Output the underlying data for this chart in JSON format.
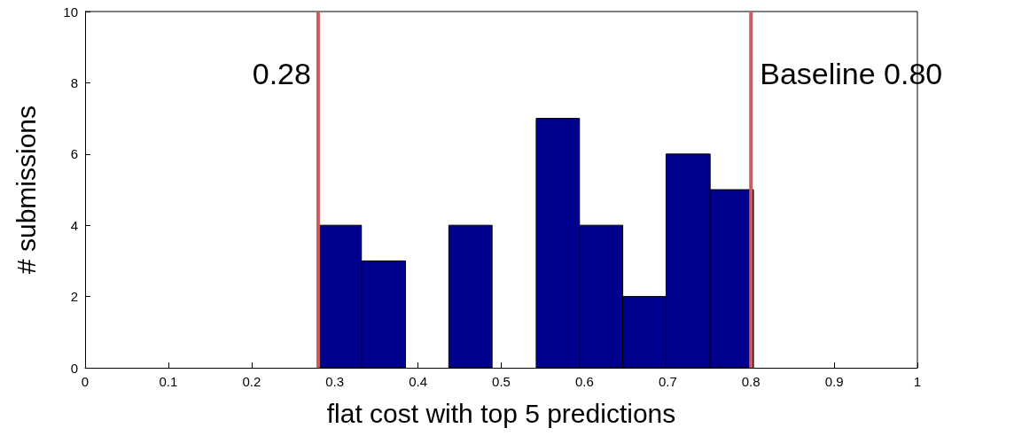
{
  "chart_data": {
    "type": "histogram",
    "xlabel": "flat cost with top 5 predictions",
    "ylabel": "# submissions",
    "bins": [
      0.28,
      0.332,
      0.385,
      0.437,
      0.489,
      0.542,
      0.594,
      0.646,
      0.698,
      0.751,
      0.803
    ],
    "values": [
      4,
      3,
      0,
      4,
      0,
      7,
      4,
      2,
      6,
      5
    ],
    "color": "#00008f",
    "xlim": [
      0,
      1
    ],
    "xticks": [
      0,
      0.1,
      0.2,
      0.3,
      0.4,
      0.5,
      0.6,
      0.7,
      0.8,
      0.9,
      1
    ],
    "ylim": [
      0,
      10
    ],
    "yticks": [
      0,
      2,
      4,
      6,
      8,
      10
    ],
    "grid": false,
    "ref_lines": [
      {
        "axis": "x",
        "value": 0.28,
        "label": "0.28",
        "color": "#cd5c5c"
      },
      {
        "axis": "x",
        "value": 0.8,
        "label": "Baseline 0.80",
        "color": "#cd5c5c"
      }
    ]
  }
}
